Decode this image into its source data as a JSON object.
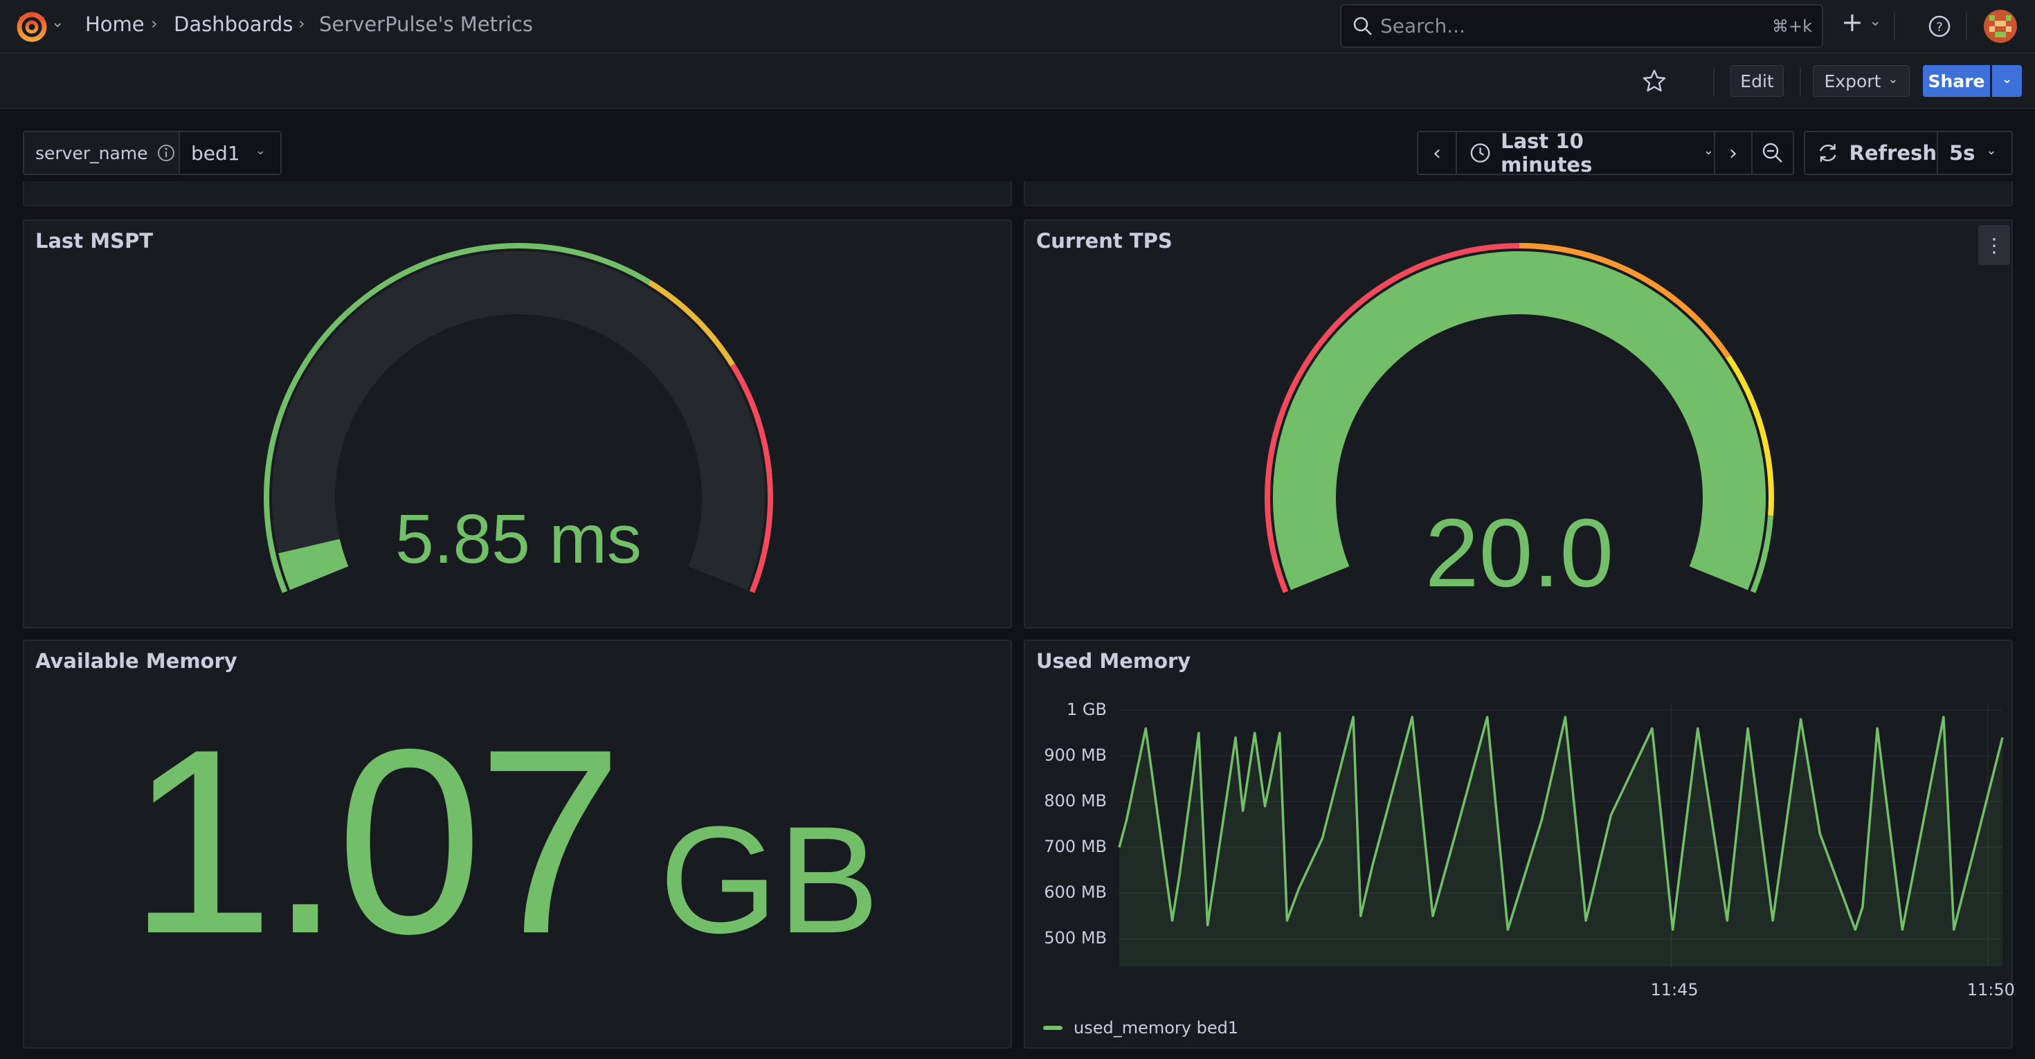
{
  "breadcrumb": {
    "home": "Home",
    "dashboards": "Dashboards",
    "current": "ServerPulse's Metrics"
  },
  "search": {
    "placeholder": "Search...",
    "shortcut": "⌘+k"
  },
  "topbar": {
    "add_icon": "+",
    "add_caret": "⌄"
  },
  "toolbar": {
    "edit": "Edit",
    "export": "Export",
    "share": "Share"
  },
  "variable": {
    "name": "server_name",
    "value": "bed1"
  },
  "time": {
    "range": "Last 10 minutes",
    "refresh": "Refresh",
    "interval": "5s"
  },
  "panels": {
    "mspt": {
      "title": "Last MSPT",
      "value": "5.85 ms",
      "fraction": 0.04
    },
    "tps": {
      "title": "Current TPS",
      "value": "20.0",
      "fraction": 1.0
    },
    "avail": {
      "title": "Available Memory",
      "value": "1.07",
      "unit": "GB"
    },
    "used": {
      "title": "Used Memory"
    }
  },
  "colors": {
    "green": "#73bf69",
    "yellow": "#fade2a",
    "orange": "#ff9830",
    "red": "#f2495c",
    "accent": "#3d71d9"
  },
  "chart_data": {
    "type": "line",
    "title": "Used Memory",
    "ylabels": [
      "1 GB",
      "900 MB",
      "800 MB",
      "700 MB",
      "600 MB",
      "500 MB"
    ],
    "ylim": [
      440,
      1000
    ],
    "xlabels": [
      "11:45",
      "11:50"
    ],
    "xlim": [
      0,
      600
    ],
    "xlabel_pos": [
      375,
      590
    ],
    "series": [
      {
        "name": "used_memory bed1",
        "color": "#73bf69",
        "x": [
          0,
          5,
          18,
          36,
          41,
          54,
          60,
          79,
          84,
          92,
          99,
          109,
          114,
          122,
          138,
          159,
          164,
          172,
          199,
          213,
          231,
          250,
          264,
          287,
          303,
          317,
          334,
          362,
          376,
          393,
          413,
          427,
          444,
          463,
          476,
          500,
          505,
          515,
          532,
          560,
          567,
          600
        ],
        "y": [
          700,
          760,
          960,
          540,
          640,
          950,
          530,
          940,
          780,
          950,
          790,
          950,
          540,
          610,
          720,
          985,
          550,
          660,
          985,
          550,
          760,
          985,
          520,
          760,
          985,
          540,
          770,
          960,
          520,
          960,
          540,
          960,
          540,
          980,
          730,
          520,
          570,
          960,
          520,
          985,
          520,
          940
        ]
      }
    ]
  }
}
